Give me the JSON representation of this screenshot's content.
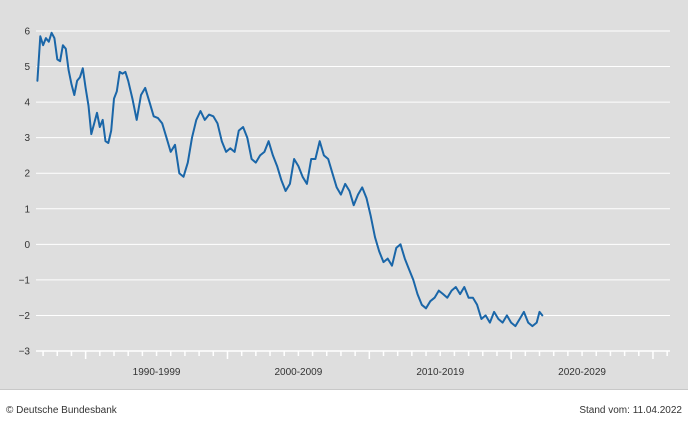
{
  "chart_data": {
    "type": "line",
    "title": "",
    "xlabel": "",
    "ylabel": "",
    "xlim": [
      1986.5,
      2031.2
    ],
    "ylim": [
      -3,
      6
    ],
    "y_ticks": [
      "6",
      "5",
      "4",
      "3",
      "2",
      "1",
      "0",
      "−1",
      "−2",
      "−3"
    ],
    "y_tick_values": [
      6,
      5,
      4,
      3,
      2,
      1,
      0,
      -1,
      -2,
      -3
    ],
    "decade_labels": [
      {
        "label": "1990-1999",
        "center": 1995
      },
      {
        "label": "2000-2009",
        "center": 2005
      },
      {
        "label": "2010-2019",
        "center": 2015
      },
      {
        "label": "2020-2029",
        "center": 2025
      }
    ],
    "grid": true,
    "legend": "none",
    "line_color": "#1a66a8",
    "series": [
      {
        "x": [
          1986.6,
          1986.8,
          1987.0,
          1987.2,
          1987.4,
          1987.6,
          1987.8,
          1988.0,
          1988.2,
          1988.4,
          1988.6,
          1988.8,
          1989.0,
          1989.2,
          1989.4,
          1989.6,
          1989.8,
          1990.0,
          1990.2,
          1990.4,
          1990.6,
          1990.8,
          1991.0,
          1991.2,
          1991.4,
          1991.6,
          1991.8,
          1992.0,
          1992.2,
          1992.4,
          1992.6,
          1992.8,
          1993.0,
          1993.3,
          1993.6,
          1993.9,
          1994.2,
          1994.5,
          1994.8,
          1995.1,
          1995.4,
          1995.7,
          1996.0,
          1996.3,
          1996.6,
          1996.9,
          1997.2,
          1997.5,
          1997.8,
          1998.1,
          1998.4,
          1998.7,
          1999.0,
          1999.3,
          1999.6,
          1999.9,
          2000.2,
          2000.5,
          2000.8,
          2001.1,
          2001.4,
          2001.7,
          2002.0,
          2002.3,
          2002.6,
          2002.9,
          2003.2,
          2003.5,
          2003.8,
          2004.1,
          2004.4,
          2004.7,
          2005.0,
          2005.3,
          2005.6,
          2005.9,
          2006.2,
          2006.5,
          2006.8,
          2007.1,
          2007.4,
          2007.7,
          2008.0,
          2008.3,
          2008.6,
          2008.9,
          2009.2,
          2009.5,
          2009.8,
          2010.1,
          2010.4,
          2010.7,
          2011.0,
          2011.3,
          2011.6,
          2011.9,
          2012.2,
          2012.5,
          2012.8,
          2013.1,
          2013.4,
          2013.7,
          2014.0,
          2014.3,
          2014.6,
          2014.9,
          2015.2,
          2015.5,
          2015.8,
          2016.1,
          2016.4,
          2016.7,
          2017.0,
          2017.3,
          2017.6,
          2017.9,
          2018.2,
          2018.5,
          2018.8,
          2019.1,
          2019.4,
          2019.7,
          2020.0,
          2020.3,
          2020.6,
          2020.9,
          2021.2,
          2021.5,
          2021.8,
          2022.0,
          2022.2
        ],
        "y": [
          4.6,
          5.85,
          5.6,
          5.8,
          5.7,
          5.95,
          5.8,
          5.2,
          5.15,
          5.6,
          5.5,
          4.9,
          4.5,
          4.2,
          4.6,
          4.7,
          4.95,
          4.4,
          3.9,
          3.1,
          3.4,
          3.7,
          3.3,
          3.5,
          2.9,
          2.85,
          3.2,
          4.1,
          4.3,
          4.85,
          4.8,
          4.85,
          4.6,
          4.1,
          3.5,
          4.2,
          4.4,
          4.0,
          3.6,
          3.55,
          3.4,
          3.0,
          2.6,
          2.8,
          2.0,
          1.9,
          2.3,
          3.0,
          3.5,
          3.75,
          3.5,
          3.65,
          3.6,
          3.4,
          2.9,
          2.6,
          2.7,
          2.6,
          3.2,
          3.3,
          3.0,
          2.4,
          2.3,
          2.5,
          2.6,
          2.9,
          2.5,
          2.2,
          1.8,
          1.5,
          1.7,
          2.4,
          2.2,
          1.9,
          1.7,
          2.4,
          2.4,
          2.9,
          2.5,
          2.4,
          2.0,
          1.6,
          1.4,
          1.7,
          1.5,
          1.1,
          1.4,
          1.6,
          1.3,
          0.8,
          0.2,
          -0.2,
          -0.5,
          -0.4,
          -0.6,
          -0.1,
          0.0,
          -0.4,
          -0.7,
          -1.0,
          -1.4,
          -1.7,
          -1.8,
          -1.6,
          -1.5,
          -1.3,
          -1.4,
          -1.5,
          -1.3,
          -1.2,
          -1.4,
          -1.2,
          -1.5,
          -1.5,
          -1.7,
          -2.1,
          -2.0,
          -2.2,
          -1.9,
          -2.1,
          -2.2,
          -2.0,
          -2.2,
          -2.3,
          -2.1,
          -1.9,
          -2.2,
          -2.3,
          -2.2,
          -1.9,
          -2.0
        ]
      }
    ]
  },
  "footer": {
    "copyright": "© Deutsche Bundesbank",
    "stand": "Stand vom: 11.04.2022"
  }
}
